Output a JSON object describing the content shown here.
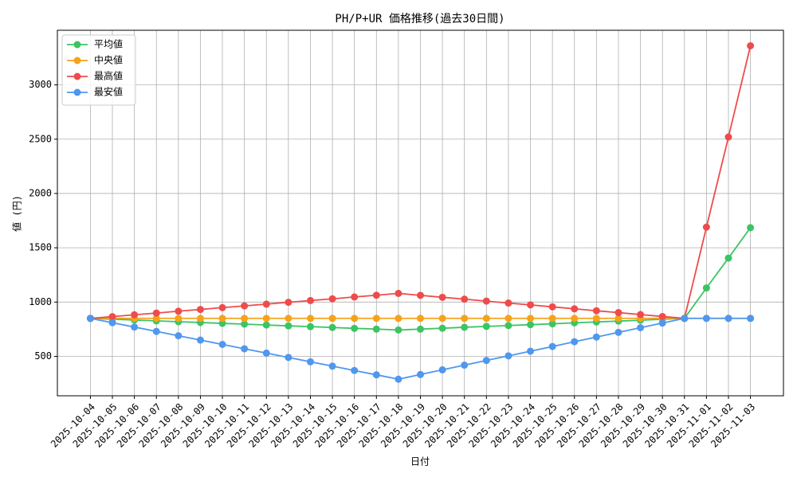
{
  "chart_data": {
    "type": "line",
    "title": "PH/P+UR 価格推移(過去30日間)",
    "x_label": "日付",
    "y_label": "値 (円)",
    "categories": [
      "2025-10-04",
      "2025-10-05",
      "2025-10-06",
      "2025-10-07",
      "2025-10-08",
      "2025-10-09",
      "2025-10-10",
      "2025-10-11",
      "2025-10-12",
      "2025-10-13",
      "2025-10-14",
      "2025-10-15",
      "2025-10-16",
      "2025-10-17",
      "2025-10-18",
      "2025-10-19",
      "2025-10-20",
      "2025-10-21",
      "2025-10-22",
      "2025-10-23",
      "2025-10-24",
      "2025-10-25",
      "2025-10-26",
      "2025-10-27",
      "2025-10-28",
      "2025-10-29",
      "2025-10-30",
      "2025-10-31",
      "2025-11-01",
      "2025-11-02",
      "2025-11-03"
    ],
    "series": [
      {
        "name": "平均値",
        "color": "#3cc463",
        "values": [
          850,
          842,
          835,
          827,
          819,
          812,
          804,
          797,
          789,
          781,
          774,
          766,
          758,
          751,
          743,
          751,
          759,
          768,
          776,
          784,
          792,
          800,
          809,
          817,
          825,
          833,
          842,
          850,
          1130,
          1405,
          1685
        ]
      },
      {
        "name": "中央値",
        "color": "#f5a31a",
        "values": [
          850,
          850,
          850,
          850,
          850,
          850,
          850,
          850,
          850,
          850,
          850,
          850,
          850,
          850,
          850,
          850,
          850,
          850,
          850,
          850,
          850,
          850,
          850,
          850,
          850,
          850,
          850,
          850,
          850,
          850,
          850
        ]
      },
      {
        "name": "最高値",
        "color": "#ef4b4b",
        "values": [
          850,
          866,
          883,
          899,
          916,
          932,
          949,
          965,
          981,
          998,
          1014,
          1030,
          1047,
          1063,
          1080,
          1062,
          1044,
          1027,
          1009,
          991,
          974,
          956,
          938,
          920,
          903,
          885,
          867,
          850,
          1690,
          2520,
          3360
        ]
      },
      {
        "name": "最安値",
        "color": "#4f97ef",
        "values": [
          850,
          810,
          770,
          730,
          690,
          650,
          610,
          570,
          530,
          490,
          450,
          410,
          370,
          330,
          290,
          333,
          376,
          419,
          462,
          505,
          548,
          591,
          635,
          678,
          721,
          764,
          807,
          850,
          850,
          850,
          850
        ]
      }
    ],
    "ylim": [
      137,
      3503
    ],
    "yticks": [
      500,
      1000,
      1500,
      2000,
      2500,
      3000
    ],
    "grid": true,
    "legend": "upper-left"
  }
}
